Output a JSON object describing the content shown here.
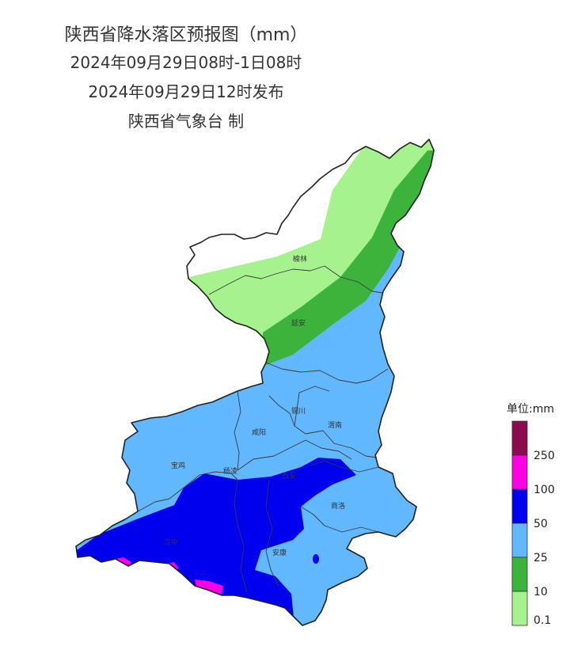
{
  "title": {
    "line1": "陕西省降水落区预报图（mm）",
    "line2": "2024年09月29日08时-1日08时",
    "line3": "2024年09月29日12时发布",
    "line4": "陕西省气象台 制"
  },
  "cities": {
    "yulin": "榆林",
    "yanan": "延安",
    "tongchuan": "铜川",
    "xianyang": "咸阳",
    "weinan": "渭南",
    "baoji": "宝鸡",
    "yangling": "杨凌",
    "xian": "西安",
    "shangluo": "商洛",
    "hanzhong": "汉中",
    "ankang": "安康"
  },
  "legend": {
    "title": "单位:mm",
    "labels": [
      "250",
      "100",
      "50",
      "25",
      "10",
      "0.1"
    ],
    "colors": {
      "above_250": "#8b0a50",
      "100_250": "#ff00e6",
      "50_100": "#0000ee",
      "25_50": "#61b8ff",
      "10_25": "#3cb43c",
      "0.1_10": "#a6f28e"
    }
  }
}
